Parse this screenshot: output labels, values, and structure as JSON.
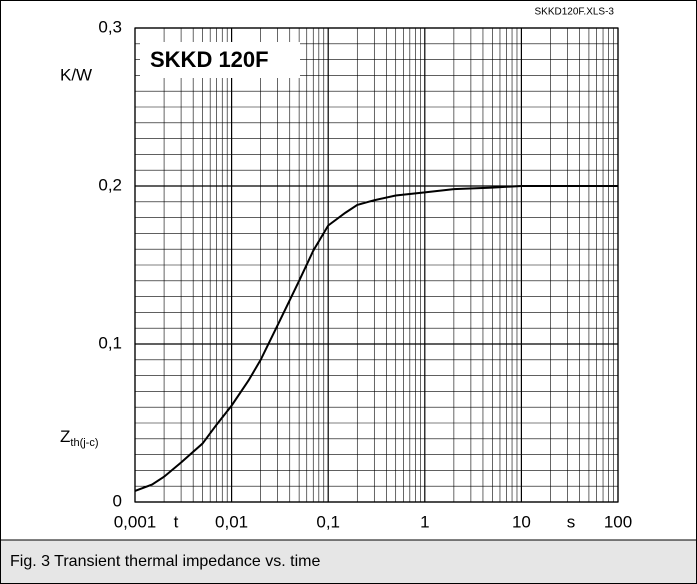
{
  "chart_data": {
    "type": "line",
    "title": "SKKD 120F",
    "file_label": "SKKD120F.XLS-3",
    "caption": "Fig. 3 Transient thermal impedance vs. time",
    "ylabel": "Z",
    "ylabel_sub": "th(j-c)",
    "yunit": "K/W",
    "xlabel": "t",
    "xunit": "s",
    "xscale": "log",
    "grid": true,
    "color": "#000000",
    "x": [
      0.001,
      0.0015,
      0.002,
      0.003,
      0.005,
      0.007,
      0.01,
      0.015,
      0.02,
      0.03,
      0.05,
      0.07,
      0.1,
      0.15,
      0.2,
      0.3,
      0.5,
      1,
      2,
      5,
      10,
      100
    ],
    "values": [
      0.007,
      0.011,
      0.016,
      0.025,
      0.037,
      0.049,
      0.061,
      0.077,
      0.09,
      0.112,
      0.14,
      0.159,
      0.175,
      0.183,
      0.188,
      0.191,
      0.194,
      0.196,
      0.198,
      0.199,
      0.2,
      0.2
    ],
    "xlim": [
      0.001,
      100
    ],
    "xticks": [
      {
        "value": 0.001,
        "label": "0,001"
      },
      {
        "value": 0.01,
        "label": "0,01"
      },
      {
        "value": 0.1,
        "label": "0,1"
      },
      1,
      10,
      100
    ],
    "ylim": [
      0,
      0.3
    ],
    "yticks": [
      0,
      {
        "value": 0.1,
        "label": "0,1"
      },
      {
        "value": 0.2,
        "label": "0,2"
      },
      {
        "value": 0.3,
        "label": "0,3"
      }
    ]
  }
}
